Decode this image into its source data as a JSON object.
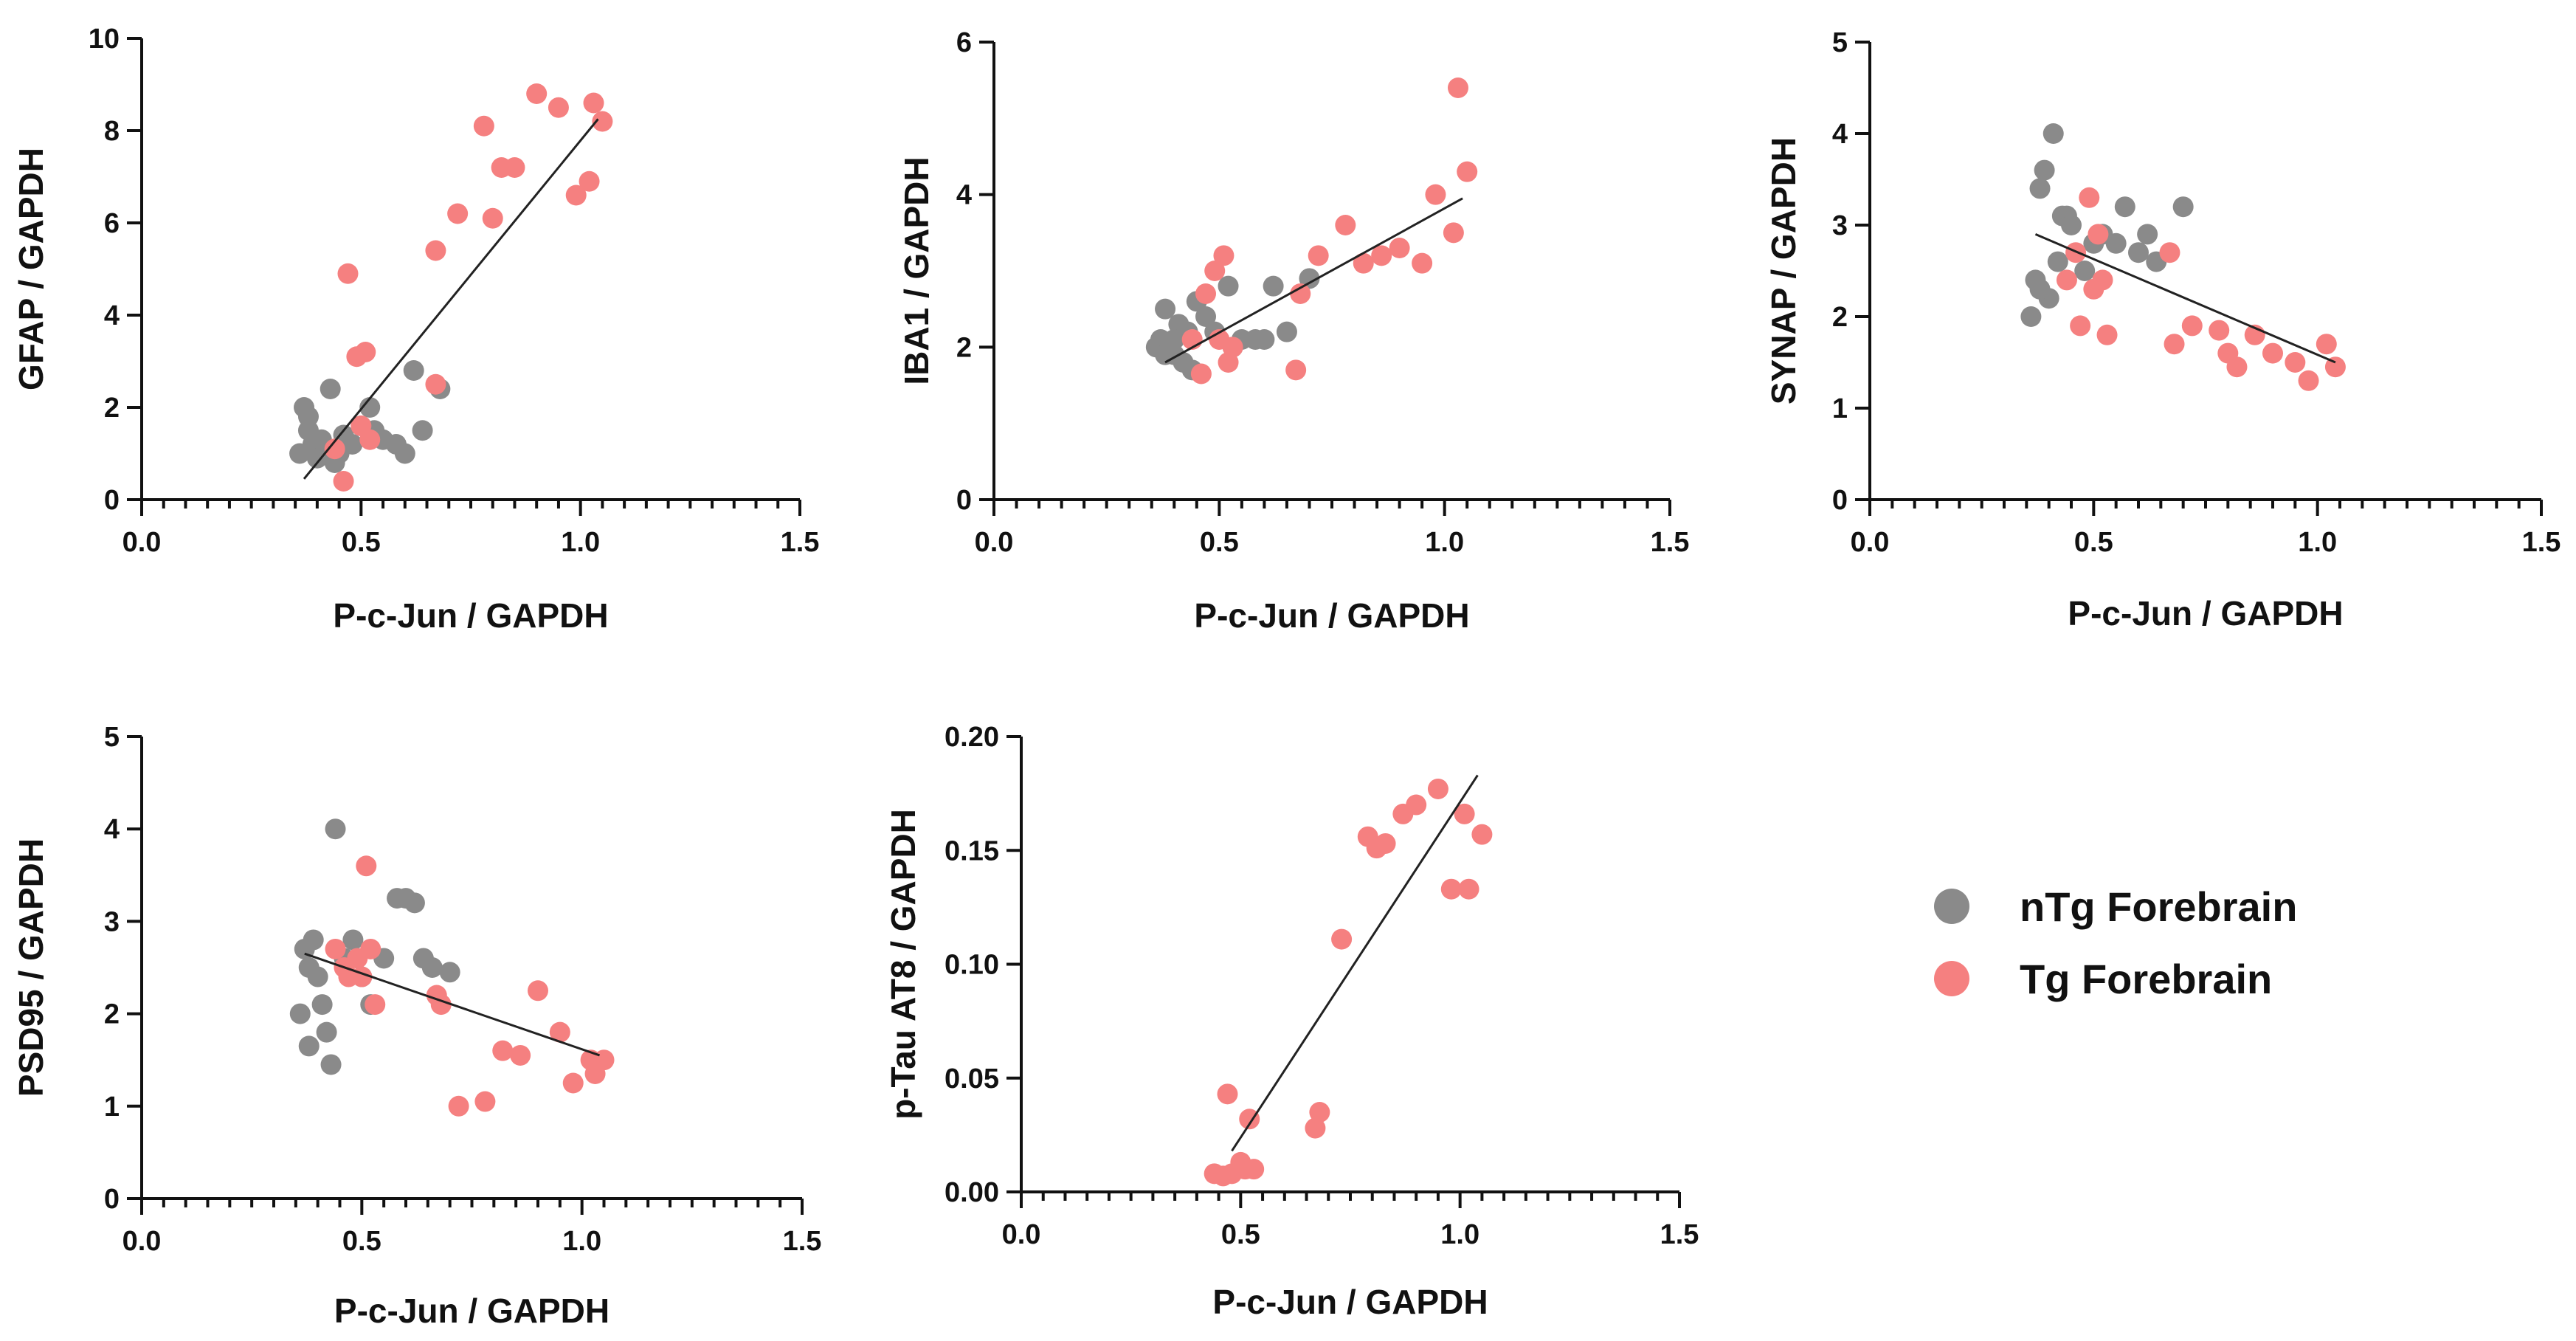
{
  "colors": {
    "nTg": "#8a8a8a",
    "Tg": "#f58080",
    "axis": "#111111"
  },
  "legend": [
    {
      "name": "nTg Forebrain",
      "color": "#8a8a8a"
    },
    {
      "name": "Tg Forebrain",
      "color": "#f58080"
    }
  ],
  "chart_data": [
    {
      "id": "gfap",
      "type": "scatter",
      "xlabel": "P-c-Jun / GAPDH",
      "ylabel": "GFAP / GAPDH",
      "xlim": [
        0,
        1.5
      ],
      "ylim": [
        0,
        10
      ],
      "xticks": [
        0,
        0.5,
        1,
        1.5
      ],
      "xtick_labels": [
        "0.0",
        "0.5",
        "1.0",
        "1.5"
      ],
      "yticks": [
        0,
        2,
        4,
        6,
        8,
        10
      ],
      "ytick_labels": [
        "0",
        "2",
        "4",
        "6",
        "8",
        "10"
      ],
      "fit": [
        [
          0.37,
          0.45
        ],
        [
          1.04,
          8.25
        ]
      ],
      "series": [
        {
          "name": "nTg Forebrain",
          "points": [
            [
              0.36,
              1.0
            ],
            [
              0.37,
              2.0
            ],
            [
              0.38,
              1.8
            ],
            [
              0.39,
              1.2
            ],
            [
              0.4,
              0.9
            ],
            [
              0.41,
              1.3
            ],
            [
              0.42,
              1.1
            ],
            [
              0.43,
              2.4
            ],
            [
              0.44,
              0.8
            ],
            [
              0.46,
              1.4
            ],
            [
              0.48,
              1.2
            ],
            [
              0.5,
              1.6
            ],
            [
              0.52,
              2.0
            ],
            [
              0.53,
              1.5
            ],
            [
              0.55,
              1.3
            ],
            [
              0.58,
              1.2
            ],
            [
              0.6,
              1.0
            ],
            [
              0.62,
              2.8
            ],
            [
              0.64,
              1.5
            ],
            [
              0.68,
              2.4
            ],
            [
              0.38,
              1.5
            ],
            [
              0.45,
              1.0
            ]
          ]
        },
        {
          "name": "Tg Forebrain",
          "points": [
            [
              0.44,
              1.1
            ],
            [
              0.46,
              0.4
            ],
            [
              0.47,
              4.9
            ],
            [
              0.49,
              3.1
            ],
            [
              0.5,
              1.6
            ],
            [
              0.51,
              3.2
            ],
            [
              0.52,
              1.3
            ],
            [
              0.67,
              5.4
            ],
            [
              0.67,
              2.5
            ],
            [
              0.72,
              6.2
            ],
            [
              0.78,
              8.1
            ],
            [
              0.8,
              6.1
            ],
            [
              0.82,
              7.2
            ],
            [
              0.85,
              7.2
            ],
            [
              0.9,
              8.8
            ],
            [
              0.95,
              8.5
            ],
            [
              0.99,
              6.6
            ],
            [
              1.02,
              6.9
            ],
            [
              1.03,
              8.6
            ],
            [
              1.05,
              8.2
            ]
          ]
        }
      ]
    },
    {
      "id": "iba1",
      "type": "scatter",
      "xlabel": "P-c-Jun / GAPDH",
      "ylabel": "IBA1 / GAPDH",
      "xlim": [
        0,
        1.5
      ],
      "ylim": [
        0,
        6
      ],
      "xticks": [
        0,
        0.5,
        1,
        1.5
      ],
      "xtick_labels": [
        "0.0",
        "0.5",
        "1.0",
        "1.5"
      ],
      "yticks": [
        0,
        2,
        4,
        6
      ],
      "ytick_labels": [
        "0",
        "2",
        "4",
        "6"
      ],
      "fit": [
        [
          0.38,
          1.8
        ],
        [
          1.04,
          3.95
        ]
      ],
      "series": [
        {
          "name": "nTg Forebrain",
          "points": [
            [
              0.36,
              2.0
            ],
            [
              0.37,
              2.1
            ],
            [
              0.38,
              2.5
            ],
            [
              0.39,
              2.0
            ],
            [
              0.4,
              1.9
            ],
            [
              0.41,
              2.3
            ],
            [
              0.42,
              1.8
            ],
            [
              0.43,
              2.2
            ],
            [
              0.44,
              1.7
            ],
            [
              0.45,
              2.6
            ],
            [
              0.47,
              2.4
            ],
            [
              0.49,
              2.2
            ],
            [
              0.52,
              2.8
            ],
            [
              0.53,
              2.0
            ],
            [
              0.55,
              2.1
            ],
            [
              0.58,
              2.1
            ],
            [
              0.6,
              2.1
            ],
            [
              0.62,
              2.8
            ],
            [
              0.65,
              2.2
            ],
            [
              0.7,
              2.9
            ],
            [
              0.4,
              2.1
            ],
            [
              0.38,
              1.9
            ]
          ]
        },
        {
          "name": "Tg Forebrain",
          "points": [
            [
              0.44,
              2.1
            ],
            [
              0.46,
              1.65
            ],
            [
              0.47,
              2.7
            ],
            [
              0.49,
              3.0
            ],
            [
              0.5,
              2.1
            ],
            [
              0.51,
              3.2
            ],
            [
              0.52,
              1.8
            ],
            [
              0.53,
              2.0
            ],
            [
              0.67,
              1.7
            ],
            [
              0.68,
              2.7
            ],
            [
              0.72,
              3.2
            ],
            [
              0.78,
              3.6
            ],
            [
              0.82,
              3.1
            ],
            [
              0.86,
              3.2
            ],
            [
              0.9,
              3.3
            ],
            [
              0.95,
              3.1
            ],
            [
              0.98,
              4.0
            ],
            [
              1.02,
              3.5
            ],
            [
              1.03,
              5.4
            ],
            [
              1.05,
              4.3
            ]
          ]
        }
      ]
    },
    {
      "id": "synap",
      "type": "scatter",
      "xlabel": "P-c-Jun / GAPDH",
      "ylabel": "SYNAP / GAPDH",
      "xlim": [
        0,
        1.5
      ],
      "ylim": [
        0,
        5
      ],
      "xticks": [
        0,
        0.5,
        1,
        1.5
      ],
      "xtick_labels": [
        "0.0",
        "0.5",
        "1.0",
        "1.5"
      ],
      "yticks": [
        0,
        1,
        2,
        3,
        4,
        5
      ],
      "ytick_labels": [
        "0",
        "1",
        "2",
        "3",
        "4",
        "5"
      ],
      "fit": [
        [
          0.37,
          2.9
        ],
        [
          1.04,
          1.5
        ]
      ],
      "series": [
        {
          "name": "nTg Forebrain",
          "points": [
            [
              0.36,
              2.0
            ],
            [
              0.37,
              2.4
            ],
            [
              0.38,
              3.4
            ],
            [
              0.39,
              3.6
            ],
            [
              0.4,
              2.2
            ],
            [
              0.41,
              4.0
            ],
            [
              0.42,
              2.6
            ],
            [
              0.43,
              3.1
            ],
            [
              0.44,
              3.1
            ],
            [
              0.45,
              3.0
            ],
            [
              0.48,
              2.5
            ],
            [
              0.5,
              2.8
            ],
            [
              0.52,
              2.9
            ],
            [
              0.55,
              2.8
            ],
            [
              0.57,
              3.2
            ],
            [
              0.6,
              2.7
            ],
            [
              0.62,
              2.9
            ],
            [
              0.64,
              2.6
            ],
            [
              0.7,
              3.2
            ],
            [
              0.38,
              2.3
            ]
          ]
        },
        {
          "name": "Tg Forebrain",
          "points": [
            [
              0.44,
              2.4
            ],
            [
              0.46,
              2.7
            ],
            [
              0.47,
              1.9
            ],
            [
              0.49,
              3.3
            ],
            [
              0.5,
              2.3
            ],
            [
              0.51,
              2.9
            ],
            [
              0.52,
              2.4
            ],
            [
              0.53,
              1.8
            ],
            [
              0.67,
              2.7
            ],
            [
              0.68,
              1.7
            ],
            [
              0.72,
              1.9
            ],
            [
              0.78,
              1.85
            ],
            [
              0.8,
              1.6
            ],
            [
              0.82,
              1.45
            ],
            [
              0.86,
              1.8
            ],
            [
              0.9,
              1.6
            ],
            [
              0.95,
              1.5
            ],
            [
              0.98,
              1.3
            ],
            [
              1.02,
              1.7
            ],
            [
              1.04,
              1.45
            ]
          ]
        }
      ]
    },
    {
      "id": "psd95",
      "type": "scatter",
      "xlabel": "P-c-Jun / GAPDH",
      "ylabel": "PSD95 / GAPDH",
      "xlim": [
        0,
        1.5
      ],
      "ylim": [
        0,
        5
      ],
      "xticks": [
        0,
        0.5,
        1,
        1.5
      ],
      "xtick_labels": [
        "0.0",
        "0.5",
        "1.0",
        "1.5"
      ],
      "yticks": [
        0,
        1,
        2,
        3,
        4,
        5
      ],
      "ytick_labels": [
        "0",
        "1",
        "2",
        "3",
        "4",
        "5"
      ],
      "fit": [
        [
          0.37,
          2.65
        ],
        [
          1.04,
          1.55
        ]
      ],
      "series": [
        {
          "name": "nTg Forebrain",
          "points": [
            [
              0.36,
              2.0
            ],
            [
              0.37,
              2.7
            ],
            [
              0.38,
              1.65
            ],
            [
              0.39,
              2.8
            ],
            [
              0.4,
              2.4
            ],
            [
              0.41,
              2.1
            ],
            [
              0.42,
              1.8
            ],
            [
              0.43,
              1.45
            ],
            [
              0.44,
              4.0
            ],
            [
              0.46,
              2.6
            ],
            [
              0.48,
              2.8
            ],
            [
              0.5,
              2.4
            ],
            [
              0.52,
              2.1
            ],
            [
              0.55,
              2.6
            ],
            [
              0.58,
              3.25
            ],
            [
              0.6,
              3.25
            ],
            [
              0.62,
              3.2
            ],
            [
              0.64,
              2.6
            ],
            [
              0.66,
              2.5
            ],
            [
              0.7,
              2.45
            ],
            [
              0.38,
              2.5
            ]
          ]
        },
        {
          "name": "Tg Forebrain",
          "points": [
            [
              0.44,
              2.7
            ],
            [
              0.46,
              2.5
            ],
            [
              0.47,
              2.4
            ],
            [
              0.49,
              2.6
            ],
            [
              0.5,
              2.4
            ],
            [
              0.51,
              3.6
            ],
            [
              0.52,
              2.7
            ],
            [
              0.53,
              2.1
            ],
            [
              0.67,
              2.2
            ],
            [
              0.68,
              2.1
            ],
            [
              0.72,
              1.0
            ],
            [
              0.78,
              1.05
            ],
            [
              0.82,
              1.6
            ],
            [
              0.86,
              1.55
            ],
            [
              0.9,
              2.25
            ],
            [
              0.95,
              1.8
            ],
            [
              0.98,
              1.25
            ],
            [
              1.02,
              1.5
            ],
            [
              1.03,
              1.35
            ],
            [
              1.05,
              1.5
            ]
          ]
        }
      ]
    },
    {
      "id": "ptau",
      "type": "scatter",
      "xlabel": "P-c-Jun / GAPDH",
      "ylabel": "p-Tau AT8 / GAPDH",
      "xlim": [
        0,
        1.5
      ],
      "ylim": [
        0,
        0.2
      ],
      "xticks": [
        0,
        0.5,
        1,
        1.5
      ],
      "xtick_labels": [
        "0.0",
        "0.5",
        "1.0",
        "1.5"
      ],
      "yticks": [
        0,
        0.05,
        0.1,
        0.15,
        0.2
      ],
      "ytick_labels": [
        "0.00",
        "0.05",
        "0.10",
        "0.15",
        "0.20"
      ],
      "fit": [
        [
          0.48,
          0.018
        ],
        [
          1.04,
          0.183
        ]
      ],
      "series": [
        {
          "name": "Tg Forebrain",
          "points": [
            [
              0.44,
              0.008
            ],
            [
              0.46,
              0.007
            ],
            [
              0.47,
              0.043
            ],
            [
              0.48,
              0.008
            ],
            [
              0.5,
              0.013
            ],
            [
              0.51,
              0.01
            ],
            [
              0.52,
              0.032
            ],
            [
              0.53,
              0.01
            ],
            [
              0.67,
              0.028
            ],
            [
              0.68,
              0.035
            ],
            [
              0.73,
              0.111
            ],
            [
              0.79,
              0.156
            ],
            [
              0.81,
              0.151
            ],
            [
              0.83,
              0.153
            ],
            [
              0.87,
              0.166
            ],
            [
              0.9,
              0.17
            ],
            [
              0.95,
              0.177
            ],
            [
              0.98,
              0.133
            ],
            [
              1.01,
              0.166
            ],
            [
              1.02,
              0.133
            ],
            [
              1.05,
              0.157
            ]
          ]
        }
      ]
    }
  ]
}
